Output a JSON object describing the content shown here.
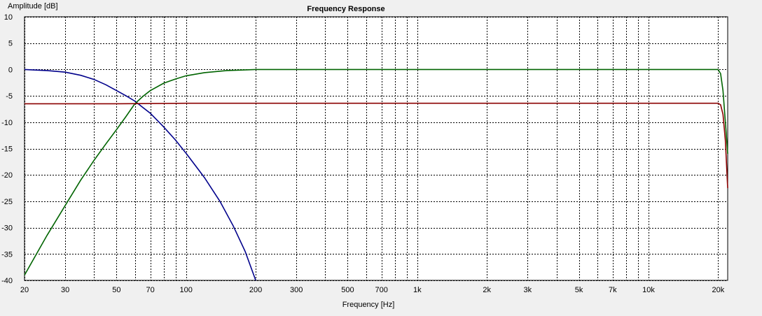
{
  "chart_data": {
    "type": "line",
    "title": "Frequency Response",
    "xlabel": "Frequency [Hz]",
    "ylabel": "Amplitude [dB]",
    "x_scale": "log",
    "xlim": [
      20,
      22000
    ],
    "ylim": [
      -40,
      10
    ],
    "grid": true,
    "y_ticks": [
      10,
      5,
      0,
      -5,
      -10,
      -15,
      -20,
      -25,
      -30,
      -35,
      -40
    ],
    "x_ticks": [
      {
        "value": 20,
        "label": "20"
      },
      {
        "value": 30,
        "label": "30"
      },
      {
        "value": 50,
        "label": "50"
      },
      {
        "value": 70,
        "label": "70"
      },
      {
        "value": 100,
        "label": "100"
      },
      {
        "value": 200,
        "label": "200"
      },
      {
        "value": 300,
        "label": "300"
      },
      {
        "value": 500,
        "label": "500"
      },
      {
        "value": 700,
        "label": "700"
      },
      {
        "value": 1000,
        "label": "1k"
      },
      {
        "value": 2000,
        "label": "2k"
      },
      {
        "value": 3000,
        "label": "3k"
      },
      {
        "value": 5000,
        "label": "5k"
      },
      {
        "value": 7000,
        "label": "7k"
      },
      {
        "value": 10000,
        "label": "10k"
      },
      {
        "value": 20000,
        "label": "20k"
      }
    ],
    "x_gridlines": [
      20,
      30,
      40,
      50,
      60,
      70,
      80,
      90,
      100,
      200,
      300,
      400,
      500,
      600,
      700,
      800,
      900,
      1000,
      2000,
      3000,
      4000,
      5000,
      6000,
      7000,
      8000,
      9000,
      10000,
      20000
    ],
    "series": [
      {
        "color": "#00008b",
        "x": [
          20,
          25,
          30,
          35,
          40,
          45,
          50,
          55,
          60,
          65,
          70,
          80,
          90,
          100,
          110,
          120,
          140,
          160,
          180,
          200
        ],
        "y": [
          0,
          -0.2,
          -0.5,
          -1.1,
          -1.9,
          -2.9,
          -4.0,
          -5.0,
          -6.0,
          -7.2,
          -8.3,
          -10.9,
          -13.4,
          -15.9,
          -18.3,
          -20.5,
          -25.0,
          -29.7,
          -34.5,
          -40
        ]
      },
      {
        "color": "#006400",
        "x": [
          20,
          25,
          30,
          35,
          40,
          45,
          50,
          55,
          60,
          65,
          70,
          80,
          90,
          100,
          120,
          150,
          200,
          500,
          1000,
          2000,
          5000,
          10000,
          20000,
          20500,
          21000,
          21500,
          22000
        ],
        "y": [
          -39,
          -31.5,
          -25.8,
          -21.0,
          -17.2,
          -14.1,
          -11.4,
          -8.9,
          -6.5,
          -5.1,
          -4.0,
          -2.6,
          -1.8,
          -1.2,
          -0.6,
          -0.2,
          0,
          0,
          0,
          0,
          0,
          0,
          0,
          -0.8,
          -4,
          -10,
          -16
        ]
      },
      {
        "color": "#8b0000",
        "x": [
          20,
          50,
          100,
          200,
          500,
          1000,
          2000,
          5000,
          10000,
          20000,
          20500,
          21000,
          21500,
          22000
        ],
        "y": [
          -6.5,
          -6.5,
          -6.4,
          -6.4,
          -6.4,
          -6.4,
          -6.4,
          -6.4,
          -6.4,
          -6.4,
          -6.7,
          -8.5,
          -13.5,
          -22.5
        ]
      }
    ]
  }
}
